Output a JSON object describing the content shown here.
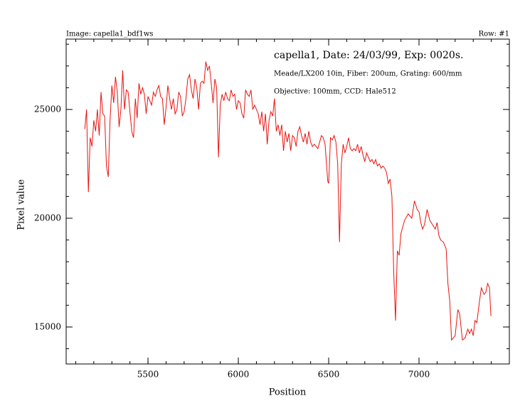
{
  "chart_data": {
    "type": "line",
    "image_label": "Image: capella1_bdf1ws",
    "row_label": "Row: #1",
    "title": "capella1, Date: 24/03/99, Exp: 0020s.",
    "annotations": [
      "Meade/LX200 10in, Fiber: 200um, Grating: 600/mm",
      "Objective: 100mm, CCD: Hale512"
    ],
    "xlabel": "Position",
    "ylabel": "Pixel value",
    "xlim": [
      5047,
      7500
    ],
    "ylim": [
      13300,
      28235
    ],
    "xticks": [
      5500,
      6000,
      6500,
      7000
    ],
    "yticks": [
      15000,
      20000,
      25000
    ],
    "xminor": 100,
    "yminor": 1000,
    "x": [
      5150,
      5160,
      5170,
      5180,
      5190,
      5200,
      5210,
      5220,
      5230,
      5240,
      5250,
      5260,
      5270,
      5280,
      5290,
      5300,
      5310,
      5320,
      5330,
      5340,
      5350,
      5360,
      5370,
      5380,
      5390,
      5400,
      5410,
      5420,
      5430,
      5440,
      5450,
      5460,
      5470,
      5480,
      5490,
      5500,
      5510,
      5520,
      5530,
      5540,
      5550,
      5560,
      5570,
      5580,
      5590,
      5600,
      5610,
      5620,
      5630,
      5640,
      5650,
      5660,
      5670,
      5680,
      5690,
      5700,
      5710,
      5720,
      5730,
      5740,
      5750,
      5760,
      5770,
      5780,
      5790,
      5800,
      5810,
      5820,
      5830,
      5840,
      5850,
      5860,
      5870,
      5880,
      5890,
      5900,
      5910,
      5920,
      5930,
      5940,
      5950,
      5960,
      5970,
      5980,
      5990,
      6000,
      6010,
      6020,
      6030,
      6040,
      6050,
      6060,
      6070,
      6080,
      6090,
      6100,
      6110,
      6120,
      6130,
      6140,
      6150,
      6160,
      6170,
      6180,
      6190,
      6200,
      6210,
      6220,
      6230,
      6240,
      6250,
      6260,
      6270,
      6280,
      6290,
      6300,
      6310,
      6320,
      6330,
      6340,
      6350,
      6360,
      6370,
      6380,
      6390,
      6400,
      6410,
      6420,
      6430,
      6440,
      6450,
      6460,
      6470,
      6480,
      6495,
      6500,
      6510,
      6520,
      6530,
      6540,
      6550,
      6560,
      6570,
      6580,
      6590,
      6600,
      6610,
      6620,
      6630,
      6640,
      6650,
      6660,
      6670,
      6680,
      6690,
      6700,
      6710,
      6720,
      6730,
      6740,
      6750,
      6760,
      6770,
      6780,
      6790,
      6800,
      6810,
      6820,
      6830,
      6840,
      6850,
      6860,
      6870,
      6880,
      6890,
      6900,
      6920,
      6940,
      6960,
      6975,
      6990,
      7000,
      7010,
      7020,
      7030,
      7045,
      7060,
      7075,
      7090,
      7100,
      7110,
      7120,
      7135,
      7150,
      7160,
      7170,
      7180,
      7190,
      7200,
      7215,
      7225,
      7240,
      7255,
      7270,
      7280,
      7290,
      7300,
      7310,
      7320,
      7335,
      7345,
      7360,
      7370,
      7380,
      7390,
      7398
    ],
    "series": [
      {
        "name": "Row: #1",
        "color": "#e8130f",
        "values": [
          24100,
          25000,
          21200,
          23700,
          23300,
          24500,
          24000,
          25000,
          23800,
          25800,
          24800,
          24700,
          22400,
          21900,
          24500,
          26100,
          25300,
          26500,
          25800,
          24200,
          25000,
          26800,
          25000,
          25900,
          25800,
          24900,
          24000,
          23700,
          25500,
          24600,
          26200,
          25700,
          26000,
          25700,
          24800,
          25600,
          25400,
          25200,
          25800,
          25600,
          25900,
          26100,
          25600,
          25500,
          24300,
          25100,
          26100,
          25500,
          25000,
          25500,
          24800,
          25000,
          25800,
          25600,
          24700,
          24900,
          25500,
          26400,
          26600,
          25900,
          25500,
          26400,
          26000,
          25000,
          26200,
          26300,
          26200,
          27200,
          26800,
          27000,
          26200,
          25300,
          26400,
          26000,
          22800,
          25200,
          25700,
          25400,
          25800,
          25500,
          25400,
          25900,
          25600,
          25700,
          25000,
          25400,
          25300,
          24800,
          24600,
          25900,
          25700,
          25600,
          25900,
          25000,
          25200,
          25000,
          24800,
          24300,
          24900,
          24000,
          24800,
          23400,
          24500,
          24900,
          24700,
          25500,
          24000,
          24300,
          23800,
          24300,
          23100,
          24000,
          23500,
          23900,
          23100,
          23800,
          23700,
          23300,
          24000,
          24200,
          23800,
          23500,
          23900,
          23400,
          24000,
          23500,
          23300,
          23400,
          23300,
          23200,
          23500,
          23800,
          23700,
          23400,
          21700,
          21600,
          23700,
          23600,
          23800,
          23500,
          22500,
          18900,
          22500,
          23400,
          23000,
          23300,
          23700,
          23200,
          23100,
          23200,
          23100,
          23400,
          23000,
          23300,
          22900,
          22600,
          23000,
          22800,
          22600,
          22700,
          22500,
          22700,
          22400,
          22500,
          22300,
          22400,
          22300,
          22100,
          21600,
          21800,
          21000,
          17500,
          15300,
          18500,
          18300,
          19300,
          19900,
          20200,
          20000,
          20800,
          20400,
          20300,
          19800,
          19500,
          19700,
          20400,
          19900,
          19700,
          19500,
          19800,
          19200,
          19000,
          18900,
          18600,
          17000,
          16200,
          14400,
          14500,
          14600,
          15800,
          15600,
          14400,
          14500,
          14900,
          14700,
          14900,
          14600,
          15300,
          15200,
          16200,
          16800,
          16500,
          16600,
          17000,
          16800,
          15500
        ]
      }
    ]
  }
}
